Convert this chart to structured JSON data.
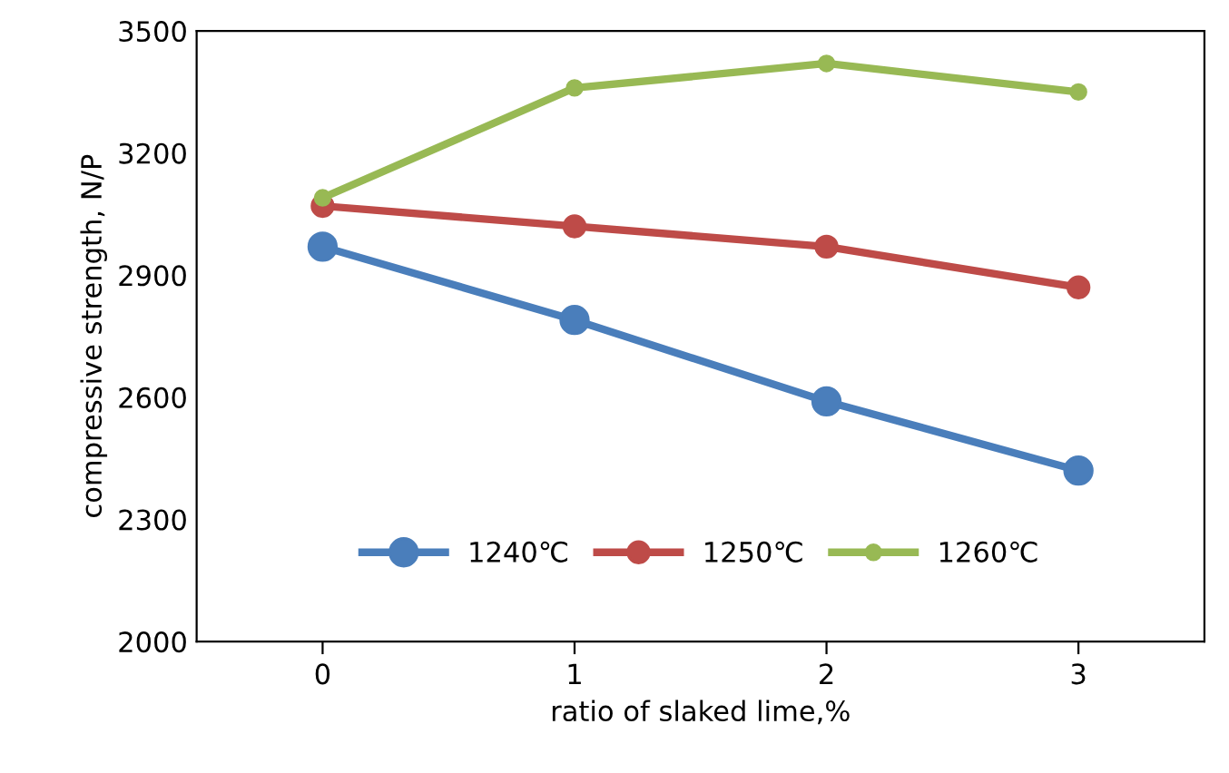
{
  "chart_data": {
    "type": "line",
    "xlabel": "ratio of slaked lime,%",
    "ylabel": "compressive strength, N/P",
    "categories": [
      "0",
      "1",
      "2",
      "3"
    ],
    "series": [
      {
        "name": "1240℃",
        "color": "#4a7ebb",
        "values": [
          2970,
          2790,
          2590,
          2420
        ]
      },
      {
        "name": "1250℃",
        "color": "#be4b48",
        "values": [
          3070,
          3020,
          2970,
          2870
        ]
      },
      {
        "name": "1260℃",
        "color": "#98b954",
        "values": [
          3090,
          3360,
          3420,
          3350
        ]
      }
    ],
    "ylim": [
      2000,
      3500
    ],
    "yticks": [
      2000,
      2300,
      2600,
      2900,
      3200,
      3500
    ],
    "marker": "circle",
    "legend": "bottom",
    "grid": false
  }
}
